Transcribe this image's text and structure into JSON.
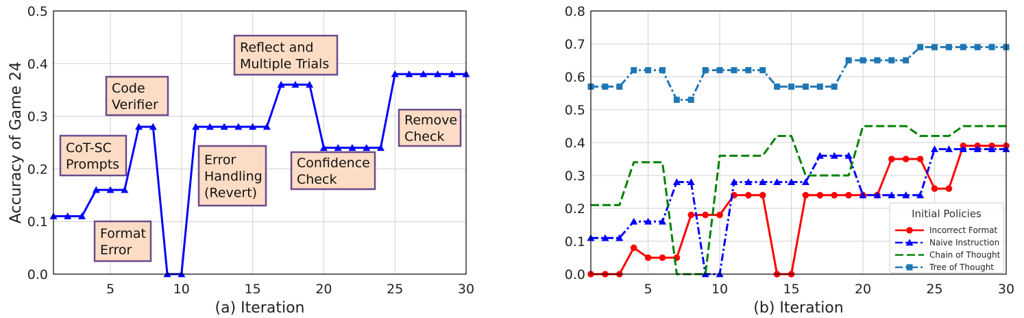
{
  "chart_data": [
    {
      "type": "line",
      "xlabel": "(a) Iteration",
      "ylabel": "Accuracy of Game 24",
      "xlim": [
        1,
        30
      ],
      "ylim": [
        0,
        0.5
      ],
      "xticks": [
        5,
        10,
        15,
        20,
        25,
        30
      ],
      "yticks": [
        "0.0",
        "0.1",
        "0.2",
        "0.3",
        "0.4",
        "0.5"
      ],
      "grid": true,
      "series": [
        {
          "color": "#0000ff",
          "marker": "triangle",
          "x": [
            1,
            2,
            3,
            4,
            5,
            6,
            7,
            8,
            9,
            10,
            11,
            12,
            13,
            14,
            15,
            16,
            17,
            18,
            19,
            20,
            21,
            22,
            23,
            24,
            25,
            26,
            27,
            28,
            29,
            30
          ],
          "y": [
            0.11,
            0.11,
            0.11,
            0.16,
            0.16,
            0.16,
            0.28,
            0.28,
            0,
            0,
            0.28,
            0.28,
            0.28,
            0.28,
            0.28,
            0.28,
            0.36,
            0.36,
            0.36,
            0.24,
            0.24,
            0.24,
            0.24,
            0.24,
            0.38,
            0.38,
            0.38,
            0.38,
            0.38,
            0.38
          ]
        }
      ],
      "annotations": [
        {
          "lines": [
            "CoT-SC",
            "Prompts"
          ]
        },
        {
          "lines": [
            "Format",
            "Error"
          ]
        },
        {
          "lines": [
            "Code",
            "Verifier"
          ]
        },
        {
          "lines": [
            "Error",
            "Handling",
            "(Revert)"
          ]
        },
        {
          "lines": [
            "Reflect and",
            "Multiple Trials"
          ]
        },
        {
          "lines": [
            "Confidence",
            "Check"
          ]
        },
        {
          "lines": [
            "Remove",
            "Check"
          ]
        }
      ]
    },
    {
      "type": "line",
      "xlabel": "(b) Iteration",
      "ylabel": "",
      "xlim": [
        1,
        30
      ],
      "ylim": [
        0,
        0.8
      ],
      "xticks": [
        5,
        10,
        15,
        20,
        25,
        30
      ],
      "yticks": [
        "0.0",
        "0.1",
        "0.2",
        "0.3",
        "0.4",
        "0.5",
        "0.6",
        "0.7",
        "0.8"
      ],
      "grid": true,
      "legend": {
        "title": "Initial Policies",
        "placement": "lower-right"
      },
      "series": [
        {
          "name": "Incorrect Format",
          "color": "#ff0000",
          "marker": "circle",
          "dash": "solid",
          "x": [
            1,
            2,
            3,
            4,
            5,
            6,
            7,
            8,
            9,
            10,
            11,
            12,
            13,
            14,
            15,
            16,
            17,
            18,
            19,
            20,
            21,
            22,
            23,
            24,
            25,
            26,
            27,
            28,
            29,
            30
          ],
          "y": [
            0,
            0,
            0,
            0.08,
            0.05,
            0.05,
            0.05,
            0.18,
            0.18,
            0.18,
            0.24,
            0.24,
            0.24,
            0,
            0,
            0.24,
            0.24,
            0.24,
            0.24,
            0.24,
            0.24,
            0.35,
            0.35,
            0.35,
            0.26,
            0.26,
            0.39,
            0.39,
            0.39,
            0.39
          ]
        },
        {
          "name": "Naive Instruction",
          "color": "#0000ff",
          "marker": "triangle",
          "dash": "dashdot",
          "x": [
            1,
            2,
            3,
            4,
            5,
            6,
            7,
            8,
            9,
            10,
            11,
            12,
            13,
            14,
            15,
            16,
            17,
            18,
            19,
            20,
            21,
            22,
            23,
            24,
            25,
            26,
            27,
            28,
            29,
            30
          ],
          "y": [
            0.11,
            0.11,
            0.11,
            0.16,
            0.16,
            0.16,
            0.28,
            0.28,
            0,
            0,
            0.28,
            0.28,
            0.28,
            0.28,
            0.28,
            0.28,
            0.36,
            0.36,
            0.36,
            0.24,
            0.24,
            0.24,
            0.24,
            0.24,
            0.38,
            0.38,
            0.38,
            0.38,
            0.38,
            0.38
          ]
        },
        {
          "name": "Chain of Thought",
          "color": "#008000",
          "marker": "none",
          "dash": "dashed",
          "x": [
            1,
            2,
            3,
            4,
            5,
            6,
            7,
            8,
            9,
            10,
            11,
            12,
            13,
            14,
            15,
            16,
            17,
            18,
            19,
            20,
            21,
            22,
            23,
            24,
            25,
            26,
            27,
            28,
            29,
            30
          ],
          "y": [
            0.21,
            0.21,
            0.21,
            0.34,
            0.34,
            0.34,
            0,
            0,
            0,
            0.36,
            0.36,
            0.36,
            0.36,
            0.42,
            0.42,
            0.3,
            0.3,
            0.3,
            0.3,
            0.45,
            0.45,
            0.45,
            0.45,
            0.42,
            0.42,
            0.42,
            0.45,
            0.45,
            0.45,
            0.45
          ]
        },
        {
          "name": "Tree of Thought",
          "color": "#1f77b4",
          "marker": "square",
          "dash": "dashdot",
          "x": [
            1,
            2,
            3,
            4,
            5,
            6,
            7,
            8,
            9,
            10,
            11,
            12,
            13,
            14,
            15,
            16,
            17,
            18,
            19,
            20,
            21,
            22,
            23,
            24,
            25,
            26,
            27,
            28,
            29,
            30
          ],
          "y": [
            0.57,
            0.57,
            0.57,
            0.62,
            0.62,
            0.62,
            0.53,
            0.53,
            0.62,
            0.62,
            0.62,
            0.62,
            0.62,
            0.57,
            0.57,
            0.57,
            0.57,
            0.57,
            0.65,
            0.65,
            0.65,
            0.65,
            0.65,
            0.69,
            0.69,
            0.69,
            0.69,
            0.69,
            0.69,
            0.69
          ]
        }
      ]
    }
  ]
}
